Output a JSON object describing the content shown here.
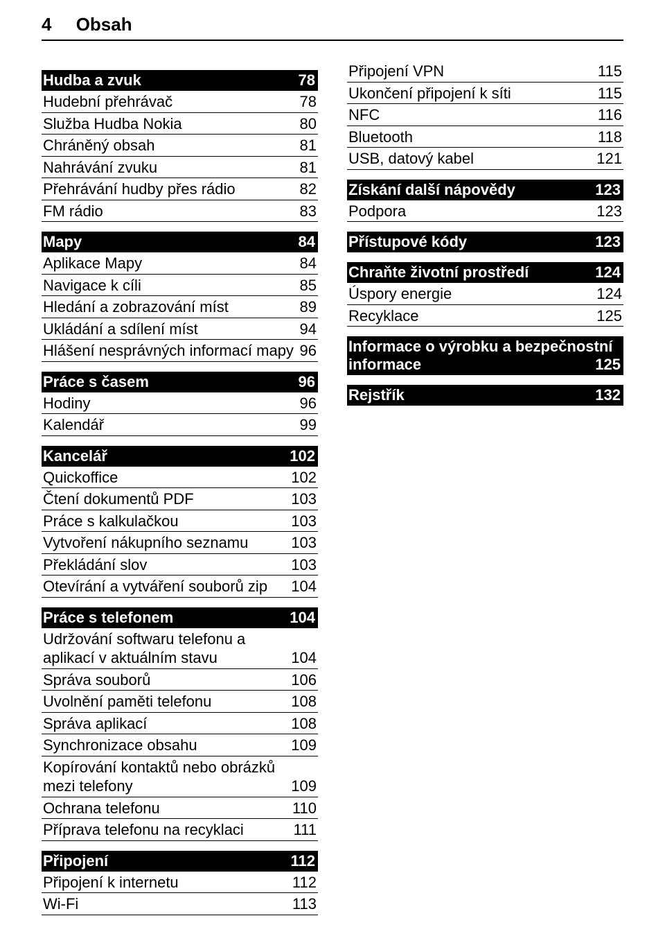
{
  "header": {
    "page_number": "4",
    "title": "Obsah"
  },
  "left": [
    {
      "type": "head",
      "label": "Hudba a zvuk",
      "page": "78"
    },
    {
      "type": "row",
      "label": "Hudební přehrávač",
      "page": "78"
    },
    {
      "type": "row",
      "label": "Služba Hudba Nokia",
      "page": "80"
    },
    {
      "type": "row",
      "label": "Chráněný obsah",
      "page": "81"
    },
    {
      "type": "row",
      "label": "Nahrávání zvuku",
      "page": "81"
    },
    {
      "type": "row",
      "label": "Přehrávání hudby přes rádio",
      "page": "82"
    },
    {
      "type": "row",
      "label": "FM rádio",
      "page": "83"
    },
    {
      "type": "head",
      "label": "Mapy",
      "page": "84"
    },
    {
      "type": "row",
      "label": "Aplikace Mapy",
      "page": "84"
    },
    {
      "type": "row",
      "label": "Navigace k cíli",
      "page": "85"
    },
    {
      "type": "row",
      "label": "Hledání a zobrazování míst",
      "page": "89"
    },
    {
      "type": "row",
      "label": "Ukládání a sdílení míst",
      "page": "94"
    },
    {
      "type": "row",
      "label": "Hlášení nesprávných informací mapy",
      "page": "96"
    },
    {
      "type": "head",
      "label": "Práce s časem",
      "page": "96"
    },
    {
      "type": "row",
      "label": "Hodiny",
      "page": "96"
    },
    {
      "type": "row",
      "label": "Kalendář",
      "page": "99"
    },
    {
      "type": "head",
      "label": "Kancelář",
      "page": "102"
    },
    {
      "type": "row",
      "label": "Quickoffice",
      "page": "102"
    },
    {
      "type": "row",
      "label": "Čtení dokumentů PDF",
      "page": "103"
    },
    {
      "type": "row",
      "label": "Práce s kalkulačkou",
      "page": "103"
    },
    {
      "type": "row",
      "label": "Vytvoření nákupního seznamu",
      "page": "103"
    },
    {
      "type": "row",
      "label": "Překládání slov",
      "page": "103"
    },
    {
      "type": "row",
      "label": "Otevírání a vytváření souborů zip",
      "page": "104"
    },
    {
      "type": "head",
      "label": "Práce s telefonem",
      "page": "104"
    },
    {
      "type": "row",
      "label": "Udržování softwaru telefonu a aplikací v aktuálním stavu",
      "page": "104"
    },
    {
      "type": "row",
      "label": "Správa souborů",
      "page": "106"
    },
    {
      "type": "row",
      "label": "Uvolnění paměti telefonu",
      "page": "108"
    },
    {
      "type": "row",
      "label": "Správa aplikací",
      "page": "108"
    },
    {
      "type": "row",
      "label": "Synchronizace obsahu",
      "page": "109"
    },
    {
      "type": "row",
      "label": "Kopírování kontaktů nebo obrázků mezi telefony",
      "page": "109"
    },
    {
      "type": "row",
      "label": "Ochrana telefonu",
      "page": "110"
    },
    {
      "type": "row",
      "label": "Příprava telefonu na recyklaci",
      "page": "111"
    },
    {
      "type": "head",
      "label": "Připojení",
      "page": "112"
    },
    {
      "type": "row",
      "label": "Připojení k internetu",
      "page": "112"
    },
    {
      "type": "row",
      "label": "Wi-Fi",
      "page": "113"
    }
  ],
  "right": [
    {
      "type": "row",
      "label": "Připojení VPN",
      "page": "115"
    },
    {
      "type": "row",
      "label": "Ukončení připojení k síti",
      "page": "115"
    },
    {
      "type": "row",
      "label": "NFC",
      "page": "116"
    },
    {
      "type": "row",
      "label": "Bluetooth",
      "page": "118"
    },
    {
      "type": "row",
      "label": "USB, datový kabel",
      "page": "121"
    },
    {
      "type": "head",
      "label": "Získání další nápovědy",
      "page": "123"
    },
    {
      "type": "row",
      "label": "Podpora",
      "page": "123"
    },
    {
      "type": "head",
      "label": "Přístupové kódy",
      "page": "123"
    },
    {
      "type": "head",
      "label": "Chraňte životní prostředí",
      "page": "124"
    },
    {
      "type": "row",
      "label": "Úspory energie",
      "page": "124"
    },
    {
      "type": "row",
      "label": "Recyklace",
      "page": "125"
    },
    {
      "type": "head-multi",
      "line1": "Informace o výrobku a bezpečnostní",
      "line2_label": "informace",
      "page": "125"
    },
    {
      "type": "head",
      "label": "Rejstřík",
      "page": "132"
    }
  ],
  "style": {
    "font_size_header_pt": 26,
    "font_size_body_pt": 22,
    "head_bg": "#000000",
    "head_fg": "#ffffff",
    "row_fg": "#000000",
    "rule_color": "#000000",
    "page_bg": "#ffffff"
  }
}
